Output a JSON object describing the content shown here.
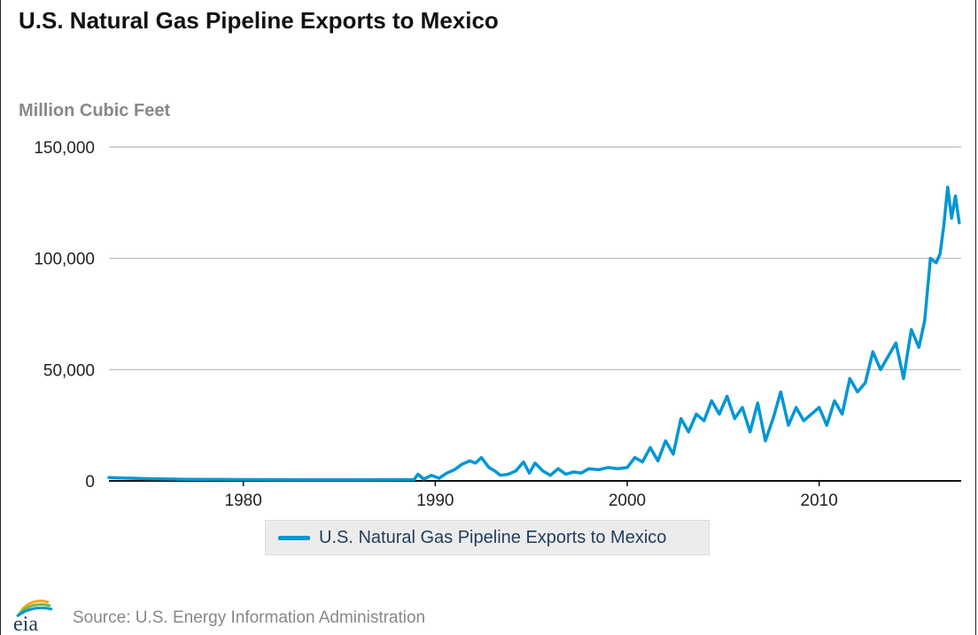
{
  "title": "U.S. Natural Gas Pipeline Exports to Mexico",
  "unit_label": "Million Cubic Feet",
  "legend_label": "U.S. Natural Gas Pipeline Exports to Mexico",
  "source": "Source: U.S. Energy Information Administration",
  "logo_text": "eia",
  "colors": {
    "series": "#0096d6",
    "grid": "#b7b7b7",
    "axis": "#111111"
  },
  "chart_data": {
    "type": "line",
    "title": "U.S. Natural Gas Pipeline Exports to Mexico",
    "ylabel": "Million Cubic Feet",
    "xlabel": "",
    "xlim": [
      1973,
      2017.4
    ],
    "ylim": [
      0,
      150000
    ],
    "yticks": [
      0,
      50000,
      100000,
      150000
    ],
    "ytick_labels": [
      "0",
      "50,000",
      "100,000",
      "150,000"
    ],
    "xticks": [
      1980,
      1990,
      2000,
      2010
    ],
    "xtick_labels": [
      "1980",
      "1990",
      "2000",
      "2010"
    ],
    "grid": true,
    "legend_position": "bottom",
    "series": [
      {
        "name": "U.S. Natural Gas Pipeline Exports to Mexico",
        "x": [
          1973.0,
          1975.0,
          1977.0,
          1980.0,
          1983.0,
          1986.0,
          1988.9,
          1989.1,
          1989.4,
          1989.8,
          1990.2,
          1990.6,
          1991.0,
          1991.4,
          1991.8,
          1992.1,
          1992.4,
          1992.8,
          1993.1,
          1993.4,
          1993.8,
          1994.2,
          1994.6,
          1994.9,
          1995.2,
          1995.6,
          1996.0,
          1996.4,
          1996.8,
          1997.2,
          1997.6,
          1998.0,
          1998.5,
          1999.0,
          1999.5,
          2000.0,
          2000.4,
          2000.8,
          2001.2,
          2001.6,
          2002.0,
          2002.4,
          2002.8,
          2003.2,
          2003.6,
          2004.0,
          2004.4,
          2004.8,
          2005.2,
          2005.6,
          2006.0,
          2006.4,
          2006.8,
          2007.2,
          2007.6,
          2008.0,
          2008.4,
          2008.8,
          2009.2,
          2009.6,
          2010.0,
          2010.4,
          2010.8,
          2011.2,
          2011.6,
          2012.0,
          2012.4,
          2012.8,
          2013.2,
          2013.6,
          2014.0,
          2014.4,
          2014.8,
          2015.2,
          2015.5,
          2015.8,
          2016.1,
          2016.3,
          2016.5,
          2016.7,
          2016.9,
          2017.1,
          2017.3
        ],
        "values": [
          1500,
          1000,
          700,
          600,
          500,
          500,
          600,
          3000,
          800,
          2500,
          1200,
          3500,
          5000,
          7500,
          9000,
          8000,
          10500,
          6000,
          4500,
          2500,
          3000,
          4500,
          8500,
          3500,
          8000,
          4500,
          2500,
          5500,
          3000,
          4000,
          3500,
          5500,
          5000,
          6000,
          5500,
          6000,
          10500,
          8500,
          15000,
          9000,
          18000,
          12000,
          28000,
          22000,
          30000,
          27000,
          36000,
          30000,
          38000,
          28000,
          33000,
          22000,
          35000,
          18000,
          28000,
          40000,
          25000,
          33000,
          27000,
          30000,
          33000,
          25000,
          36000,
          30000,
          46000,
          40000,
          44000,
          58000,
          50000,
          56000,
          62000,
          46000,
          68000,
          60000,
          72000,
          100000,
          98000,
          102000,
          115000,
          132000,
          118000,
          128000,
          116000
        ]
      }
    ]
  }
}
